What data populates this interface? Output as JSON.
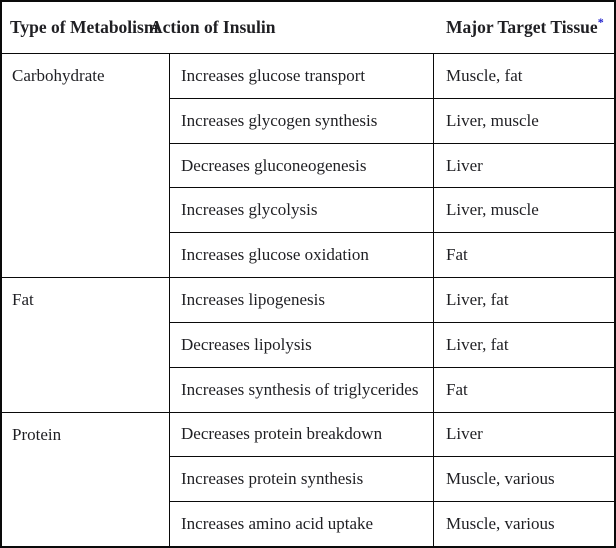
{
  "table": {
    "headers": [
      {
        "label": "Type of Metabolism"
      },
      {
        "label": "Action of Insulin"
      },
      {
        "label": "Major Target Tissue",
        "superscript": "*"
      }
    ],
    "groups": [
      {
        "type": "Carbohydrate",
        "rows": [
          {
            "action": "Increases glucose transport",
            "tissue": "Muscle, fat"
          },
          {
            "action": "Increases glycogen synthesis",
            "tissue": "Liver, muscle"
          },
          {
            "action": "Decreases gluconeogenesis",
            "tissue": "Liver"
          },
          {
            "action": "Increases glycolysis",
            "tissue": "Liver, muscle"
          },
          {
            "action": "Increases glucose oxidation",
            "tissue": "Fat"
          }
        ]
      },
      {
        "type": "Fat",
        "rows": [
          {
            "action": "Increases lipogenesis",
            "tissue": "Liver, fat"
          },
          {
            "action": "Decreases lipolysis",
            "tissue": "Liver, fat"
          },
          {
            "action": "Increases synthesis of triglycerides",
            "tissue": "Fat"
          }
        ]
      },
      {
        "type": "Protein",
        "rows": [
          {
            "action": "Decreases protein breakdown",
            "tissue": "Liver"
          },
          {
            "action": "Increases protein synthesis",
            "tissue": "Muscle, various"
          },
          {
            "action": "Increases amino acid uptake",
            "tissue": "Muscle, various"
          }
        ]
      }
    ]
  },
  "colors": {
    "border": "#0a0a0a",
    "text": "#1f1f23",
    "asterisk_accent": "#2323cc",
    "background": "#ffffff"
  }
}
